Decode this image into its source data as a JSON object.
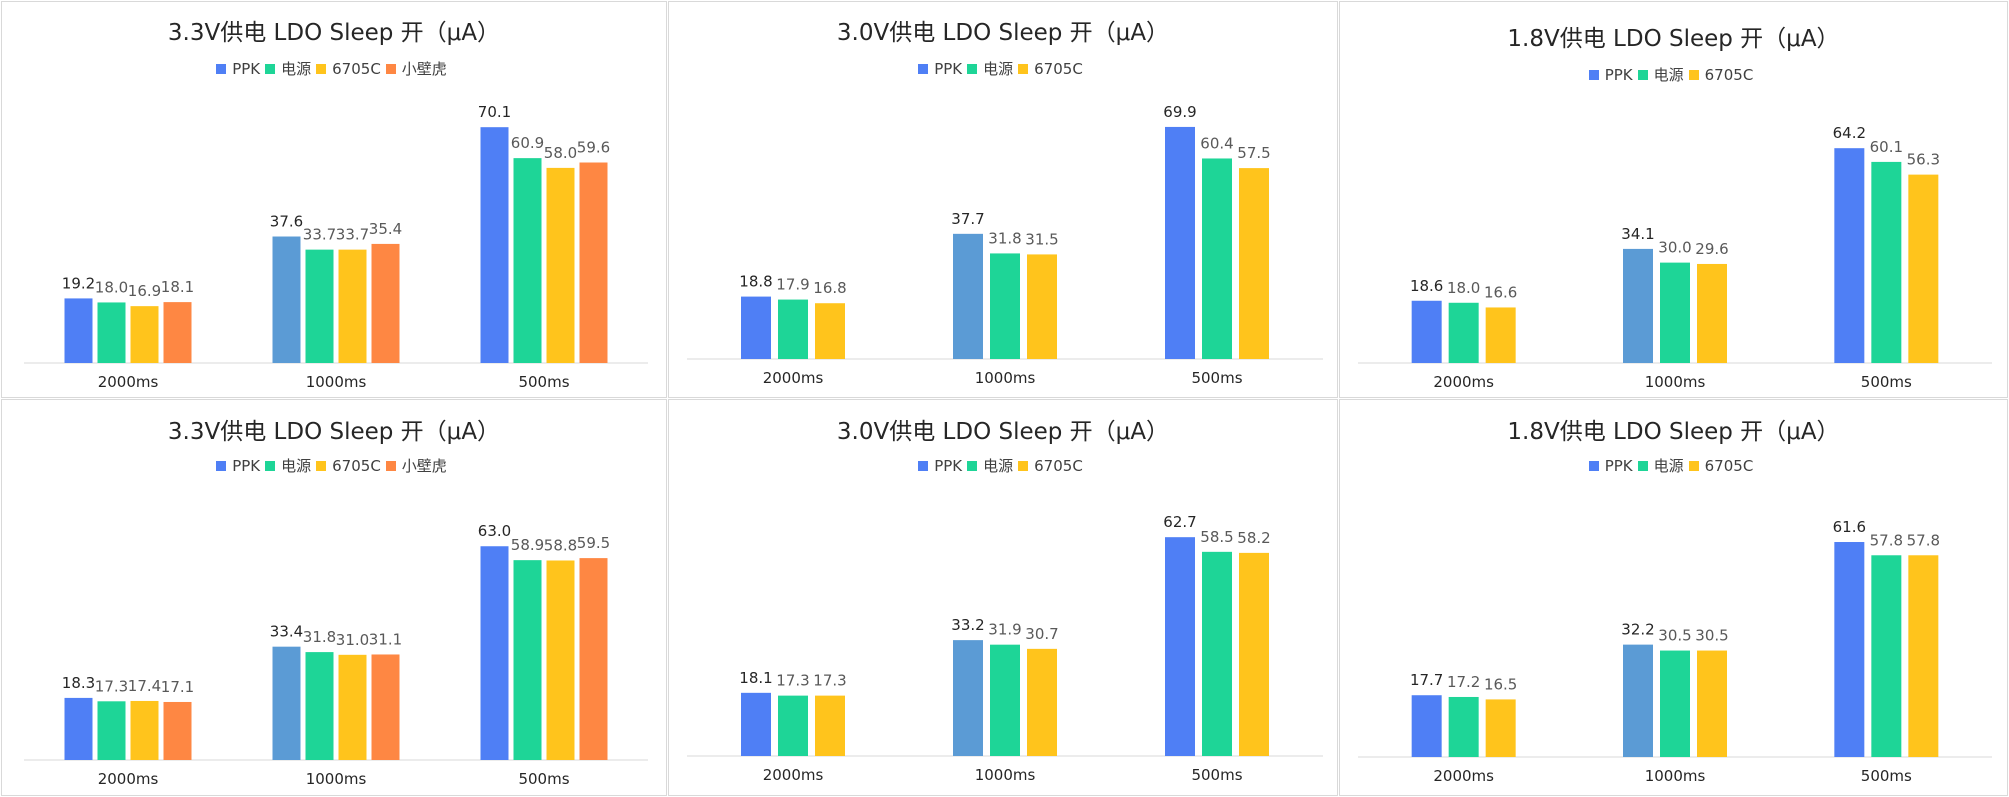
{
  "colors": {
    "PPK": "#4f7ff5",
    "PPK_1000": "#5b9bd5",
    "source": "#1ed597",
    "c6705C": "#ffc41c",
    "xiaobihu": "#fe8743"
  },
  "chart_data": [
    {
      "type": "bar",
      "title": "3.3V供电 LDO  Sleep 开（μA）",
      "categories": [
        "2000ms",
        "1000ms",
        "500ms"
      ],
      "series": [
        {
          "name": "PPK",
          "values": [
            19.2,
            37.6,
            70.1
          ]
        },
        {
          "name": "电源",
          "values": [
            18.0,
            33.7,
            60.9
          ]
        },
        {
          "name": "6705C",
          "values": [
            16.9,
            33.7,
            58.0
          ]
        },
        {
          "name": "小壁虎",
          "values": [
            18.1,
            35.4,
            59.6
          ]
        }
      ],
      "legend": "top-center",
      "grid": false
    },
    {
      "type": "bar",
      "title": "3.0V供电 LDO  Sleep 开（μA）",
      "categories": [
        "2000ms",
        "1000ms",
        "500ms"
      ],
      "series": [
        {
          "name": "PPK",
          "values": [
            18.8,
            37.7,
            69.9
          ]
        },
        {
          "name": "电源",
          "values": [
            17.9,
            31.8,
            60.4
          ]
        },
        {
          "name": "6705C",
          "values": [
            16.8,
            31.5,
            57.5
          ]
        }
      ],
      "legend": "top-center",
      "grid": false
    },
    {
      "type": "bar",
      "title": "1.8V供电 LDO  Sleep 开（μA）",
      "categories": [
        "2000ms",
        "1000ms",
        "500ms"
      ],
      "series": [
        {
          "name": "PPK",
          "values": [
            18.6,
            34.1,
            64.2
          ]
        },
        {
          "name": "电源",
          "values": [
            18.0,
            30.0,
            60.1
          ]
        },
        {
          "name": "6705C",
          "values": [
            16.6,
            29.6,
            56.3
          ]
        }
      ],
      "legend": "top-center",
      "grid": false
    },
    {
      "type": "bar",
      "title": "3.3V供电 LDO  Sleep 开（μA）",
      "categories": [
        "2000ms",
        "1000ms",
        "500ms"
      ],
      "series": [
        {
          "name": "PPK",
          "values": [
            18.3,
            33.4,
            63.0
          ]
        },
        {
          "name": "电源",
          "values": [
            17.3,
            31.8,
            58.9
          ]
        },
        {
          "name": "6705C",
          "values": [
            17.4,
            31.0,
            58.8
          ]
        },
        {
          "name": "小壁虎",
          "values": [
            17.1,
            31.1,
            59.5
          ]
        }
      ],
      "legend": "top-center",
      "grid": false
    },
    {
      "type": "bar",
      "title": "3.0V供电 LDO  Sleep 开（μA）",
      "categories": [
        "2000ms",
        "1000ms",
        "500ms"
      ],
      "series": [
        {
          "name": "PPK",
          "values": [
            18.1,
            33.2,
            62.7
          ]
        },
        {
          "name": "电源",
          "values": [
            17.3,
            31.9,
            58.5
          ]
        },
        {
          "name": "6705C",
          "values": [
            17.3,
            30.7,
            58.2
          ]
        }
      ],
      "legend": "top-center",
      "grid": false
    },
    {
      "type": "bar",
      "title": "1.8V供电 LDO  Sleep 开（μA）",
      "categories": [
        "2000ms",
        "1000ms",
        "500ms"
      ],
      "series": [
        {
          "name": "PPK",
          "values": [
            17.7,
            32.2,
            61.6
          ]
        },
        {
          "name": "电源",
          "values": [
            17.2,
            30.5,
            57.8
          ]
        },
        {
          "name": "6705C",
          "values": [
            16.5,
            30.5,
            57.8
          ]
        }
      ],
      "legend": "top-center",
      "grid": false
    }
  ]
}
